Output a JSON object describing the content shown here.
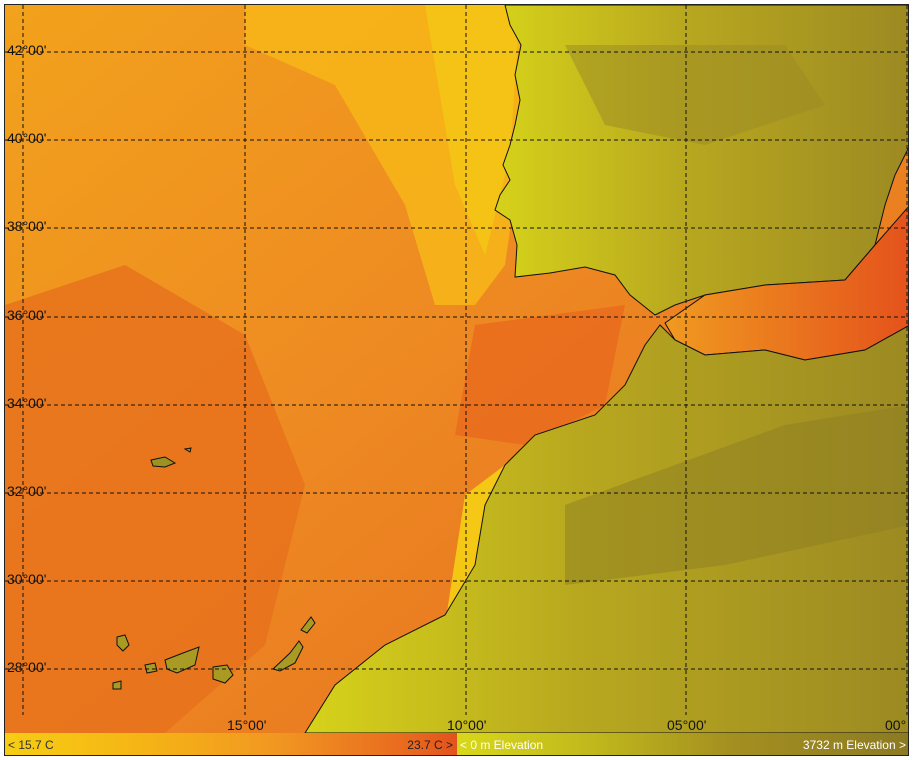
{
  "map": {
    "latitude_labels": [
      "42°00'",
      "40°00'",
      "38°00'",
      "36°00'",
      "34°00'",
      "32°00'",
      "30°00'",
      "28°00'"
    ],
    "longitude_labels": [
      "15°00'",
      "10°00'",
      "05°00'",
      "00°"
    ],
    "colors": {
      "ocean_warm": "#e4521c",
      "ocean_mid": "#f19721",
      "ocean_cool": "#f6cd14",
      "land_low": "#d8d81a",
      "land_high": "#8c7a22",
      "grid": "#111111"
    }
  },
  "legend": {
    "sst_min": "< 15.7 C",
    "sst_max": "23.7 C >",
    "elev_min": "< 0 m Elevation",
    "elev_max": "3732 m Elevation >"
  }
}
